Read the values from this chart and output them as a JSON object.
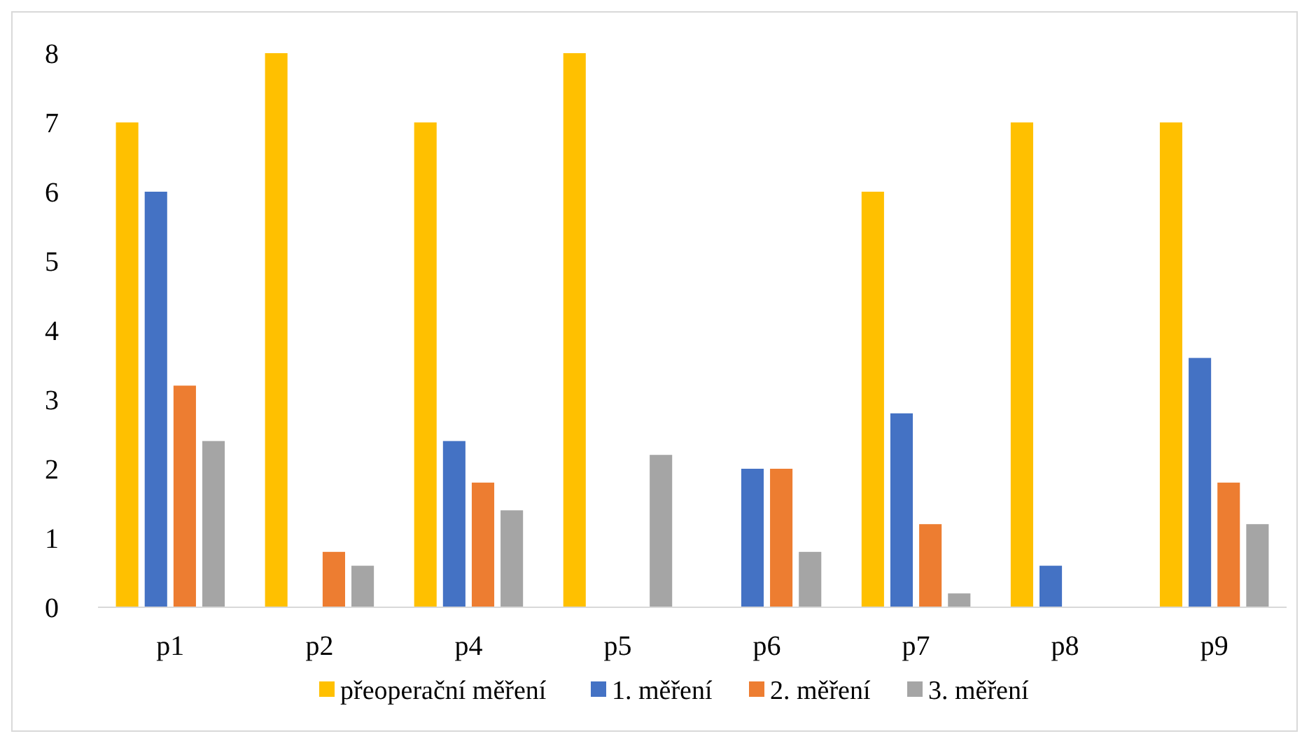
{
  "chart_data": {
    "type": "bar",
    "categories": [
      "p1",
      "p2",
      "p4",
      "p5",
      "p6",
      "p7",
      "p8",
      "p9"
    ],
    "series": [
      {
        "name": "přeoperační měření",
        "color": "#ffc000",
        "values": [
          7,
          8,
          7,
          8,
          0,
          6,
          7,
          7
        ]
      },
      {
        "name": "1. měření",
        "color": "#4472c4",
        "values": [
          6,
          0,
          2.4,
          0,
          2,
          2.8,
          0.6,
          3.6
        ]
      },
      {
        "name": "2. měření",
        "color": "#ed7d31",
        "values": [
          3.2,
          0.8,
          1.8,
          0,
          2,
          1.2,
          0,
          1.8
        ]
      },
      {
        "name": "3. měření",
        "color": "#a5a5a5",
        "values": [
          2.4,
          0.6,
          1.4,
          2.2,
          0.8,
          0.2,
          0,
          1.2
        ]
      }
    ],
    "ylim": [
      0,
      8
    ],
    "yticks": [
      0,
      1,
      2,
      3,
      4,
      5,
      6,
      7,
      8
    ],
    "grid": false,
    "legend": "bottom"
  }
}
